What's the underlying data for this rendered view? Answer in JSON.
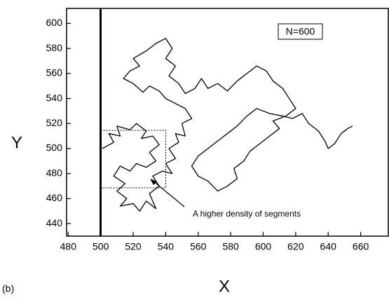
{
  "chart_data": {
    "type": "line",
    "xlabel": "X",
    "ylabel": "Y",
    "annotation": "A higher density of segments",
    "legend_label": "N=600",
    "panel_label": "(b)",
    "color": "#000000",
    "x": [
      501,
      508,
      505,
      512,
      510,
      518,
      522,
      528,
      525,
      532,
      536,
      530,
      534,
      528,
      522,
      518,
      512,
      508,
      515,
      510,
      516,
      512,
      520,
      524,
      528,
      534,
      530,
      536,
      532,
      538,
      544,
      540,
      546,
      542,
      548,
      546,
      552,
      550,
      556,
      552,
      546,
      540,
      536,
      530,
      526,
      520,
      514,
      518,
      524,
      520,
      528,
      534,
      540,
      544,
      540,
      546,
      542,
      548,
      552,
      558,
      562,
      566,
      572,
      578,
      584,
      590,
      596,
      602,
      606,
      612,
      616,
      620,
      614,
      606,
      610,
      604,
      598,
      592,
      588,
      582,
      584,
      578,
      572,
      566,
      560,
      556,
      560,
      566,
      572,
      578,
      584,
      590,
      596,
      604,
      612,
      618,
      624,
      628,
      634,
      638,
      640,
      644,
      648,
      652,
      655
    ],
    "y": [
      500,
      505,
      512,
      510,
      518,
      515,
      520,
      514,
      508,
      510,
      503,
      497,
      490,
      485,
      488,
      482,
      486,
      478,
      472,
      466,
      460,
      454,
      456,
      450,
      458,
      452,
      464,
      470,
      478,
      482,
      480,
      488,
      492,
      500,
      505,
      512,
      510,
      520,
      524,
      532,
      536,
      540,
      546,
      550,
      545,
      552,
      556,
      562,
      566,
      572,
      578,
      584,
      588,
      580,
      572,
      566,
      558,
      552,
      544,
      548,
      556,
      548,
      552,
      546,
      554,
      560,
      566,
      562,
      554,
      548,
      540,
      532,
      526,
      522,
      516,
      510,
      504,
      498,
      490,
      484,
      476,
      470,
      466,
      474,
      478,
      486,
      494,
      500,
      506,
      512,
      518,
      526,
      532,
      528,
      526,
      524,
      528,
      520,
      514,
      506,
      500,
      504,
      512,
      516,
      518
    ],
    "xlim": [
      479,
      677
    ],
    "ylim": [
      430,
      612
    ],
    "xticks": [
      480,
      500,
      520,
      540,
      560,
      580,
      600,
      620,
      640,
      660
    ],
    "yticks": [
      440,
      460,
      480,
      500,
      520,
      540,
      560,
      580,
      600
    ]
  }
}
